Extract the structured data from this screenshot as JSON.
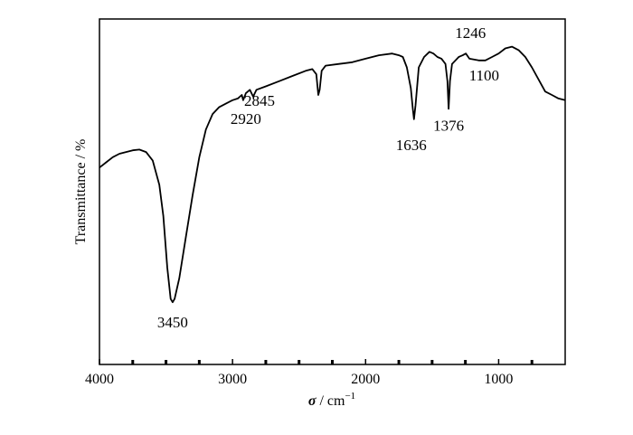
{
  "chart_data": {
    "type": "line",
    "title": "",
    "xlabel": "σ / cm⁻¹",
    "xlabel_parts": {
      "symbol": "σ",
      "unit": " / cm",
      "exponent": "−1"
    },
    "ylabel": "Transmittance / %",
    "xlim": [
      4000,
      500
    ],
    "x_axis_reversed": true,
    "ylim": [
      0,
      100
    ],
    "y_ticks_labeled": false,
    "grid": false,
    "legend": "none",
    "x_ticks": [
      {
        "value": 4000,
        "label": "4000"
      },
      {
        "value": 3000,
        "label": "3000"
      },
      {
        "value": 2000,
        "label": "2000"
      },
      {
        "value": 1000,
        "label": "1000"
      }
    ],
    "x_minor_ticks": [
      3750,
      3500,
      3250,
      2750,
      2500,
      2250,
      1750,
      1500,
      1250,
      750
    ],
    "series": [
      {
        "color": "#000000",
        "x": [
          4000,
          3950,
          3900,
          3850,
          3800,
          3750,
          3700,
          3650,
          3600,
          3550,
          3520,
          3490,
          3465,
          3450,
          3435,
          3400,
          3350,
          3300,
          3250,
          3200,
          3150,
          3100,
          3050,
          3000,
          2960,
          2930,
          2920,
          2900,
          2870,
          2845,
          2820,
          2750,
          2650,
          2550,
          2450,
          2400,
          2370,
          2355,
          2345,
          2330,
          2300,
          2200,
          2100,
          2000,
          1900,
          1800,
          1750,
          1720,
          1690,
          1660,
          1645,
          1636,
          1625,
          1600,
          1560,
          1520,
          1490,
          1460,
          1430,
          1400,
          1385,
          1376,
          1366,
          1350,
          1300,
          1270,
          1246,
          1220,
          1150,
          1100,
          1050,
          1000,
          950,
          900,
          850,
          800,
          750,
          700,
          650,
          600,
          550,
          500
        ],
        "y": [
          57,
          58.5,
          60,
          61,
          61.5,
          62,
          62.2,
          61.5,
          59,
          52,
          43,
          28,
          19,
          18,
          19,
          25,
          37,
          49,
          60,
          68,
          72.5,
          74.5,
          75.5,
          76.5,
          77,
          78,
          76.5,
          78.5,
          79.5,
          77.5,
          79.5,
          80.5,
          82,
          83.5,
          85,
          85.5,
          84,
          78,
          79.5,
          85,
          86.5,
          87,
          87.5,
          88.5,
          89.5,
          90,
          89.5,
          89,
          86,
          80,
          74,
          71,
          75,
          86,
          89,
          90.5,
          90,
          89,
          88.5,
          87,
          82,
          74,
          82,
          87,
          89,
          89.5,
          90,
          88.5,
          88,
          88,
          89,
          90,
          91.5,
          92,
          91,
          89,
          86,
          82.5,
          79,
          78,
          77,
          76.5
        ]
      }
    ],
    "annotations": [
      {
        "text": "3450",
        "x": 3450,
        "y": 18
      },
      {
        "text": "2920",
        "x": 2920,
        "y": 76.5
      },
      {
        "text": "2845",
        "x": 2845,
        "y": 77.5
      },
      {
        "text": "1636",
        "x": 1636,
        "y": 71
      },
      {
        "text": "1376",
        "x": 1376,
        "y": 74
      },
      {
        "text": "1246",
        "x": 1246,
        "y": 90
      },
      {
        "text": "1100",
        "x": 1100,
        "y": 88
      }
    ]
  }
}
